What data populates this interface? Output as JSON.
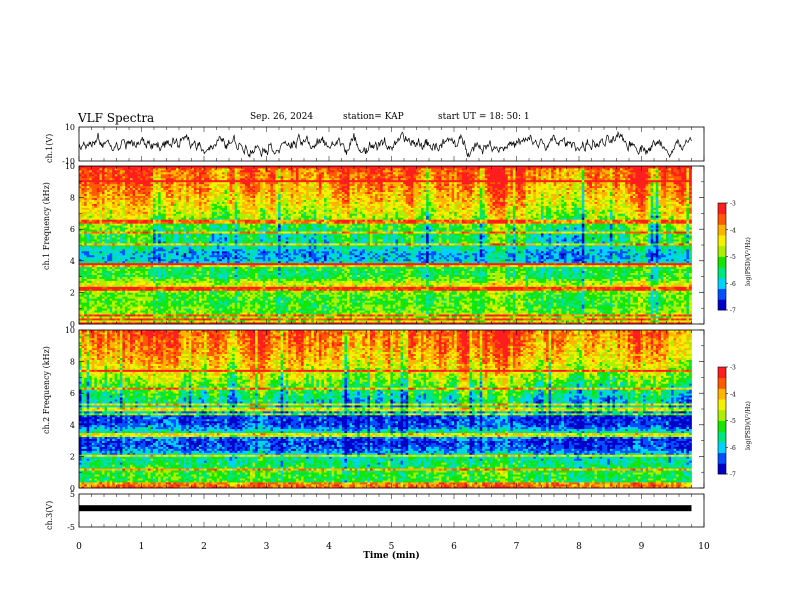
{
  "header": {
    "title": "VLF Spectra",
    "date": "Sep. 26, 2024",
    "station": "station= KAP",
    "start": "start UT =   18: 50: 1"
  },
  "colors": {
    "palette": [
      "#0000c8",
      "#0050ff",
      "#00d2ff",
      "#00e67a",
      "#14e600",
      "#aaf000",
      "#f5f000",
      "#ffb400",
      "#ff5a00",
      "#ff1e1e"
    ],
    "frame": "#000000",
    "background": "#ffffff"
  },
  "chart_data": [
    {
      "type": "line",
      "name": "ch1-waveform",
      "ylabel": "ch.1(V)",
      "ylim": [
        -10,
        10
      ],
      "yticks": [
        "10",
        "-10"
      ],
      "x_range_min": [
        0,
        9.8
      ],
      "y_baseline": 0,
      "y_amplitude": 4,
      "series": [
        {
          "values_note": "noise"
        }
      ]
    },
    {
      "type": "heatmap",
      "name": "ch1-spectrogram",
      "ylabel": "ch.1 Frequency (kHz)",
      "ylim": [
        0,
        10
      ],
      "yticks": [
        "0",
        "2",
        "4",
        "6",
        "8",
        "10"
      ],
      "xlim": [
        0,
        9.8
      ],
      "colorbar": {
        "label": "log(PSD)(V²/Hz)",
        "range": [
          -7,
          -3
        ],
        "ticks": [
          "-3",
          "-4",
          "-5",
          "-6",
          "-7"
        ]
      },
      "profile_khz": [
        0,
        0.5,
        1,
        1.5,
        2,
        2.5,
        3,
        3.5,
        4,
        4.5,
        5,
        5.5,
        6,
        6.5,
        7,
        8,
        9,
        10
      ],
      "profile_level": [
        -4.6,
        -4.9,
        -5.1,
        -5.2,
        -5.0,
        -4.4,
        -5.4,
        -5.3,
        -6.0,
        -6.1,
        -5.6,
        -5.5,
        -5.3,
        -5.0,
        -4.6,
        -4.1,
        -3.7,
        -3.5
      ],
      "lines_khz": [
        0.1,
        0.3,
        0.55,
        2.15,
        2.35,
        3.75,
        3.8,
        5.05,
        5.8,
        6.5,
        9.1,
        9.9
      ]
    },
    {
      "type": "heatmap",
      "name": "ch2-spectrogram",
      "ylabel": "ch.2 Frequency (kHz)",
      "ylim": [
        0,
        10
      ],
      "yticks": [
        "0",
        "2",
        "4",
        "6",
        "8",
        "10"
      ],
      "xlim": [
        0,
        9.8
      ],
      "colorbar": {
        "label": "log(PSD)(V²/Hz)",
        "range": [
          -7,
          -3
        ],
        "ticks": [
          "-3",
          "-4",
          "-5",
          "-6",
          "-7"
        ]
      },
      "profile_khz": [
        0,
        0.5,
        1,
        1.5,
        2,
        2.5,
        3,
        3.5,
        4,
        4.5,
        5,
        5.5,
        6,
        6.5,
        7,
        8,
        9,
        10
      ],
      "profile_level": [
        -5.0,
        -5.3,
        -5.2,
        -5.5,
        -5.7,
        -6.4,
        -6.6,
        -5.6,
        -6.5,
        -6.6,
        -5.9,
        -5.8,
        -5.5,
        -5.2,
        -4.8,
        -4.2,
        -3.8,
        -3.6
      ],
      "lines_khz": [
        0.1,
        0.25,
        1.2,
        2.1,
        3.3,
        3.4,
        4.65,
        5.0,
        5.35,
        6.3,
        7.4
      ]
    },
    {
      "type": "line",
      "name": "ch3-waveform",
      "ylabel": "ch.3(V)",
      "ylim": [
        -5,
        5
      ],
      "yticks": [
        "5",
        "-5"
      ],
      "x_range_min": [
        0,
        9.8
      ],
      "y_baseline": 1,
      "series": [
        {
          "values_note": "flat"
        }
      ]
    }
  ],
  "xaxis": {
    "label": "Time (min)",
    "lim": [
      0,
      10
    ],
    "ticks": [
      "0",
      "1",
      "2",
      "3",
      "4",
      "5",
      "6",
      "7",
      "8",
      "9",
      "10"
    ]
  }
}
